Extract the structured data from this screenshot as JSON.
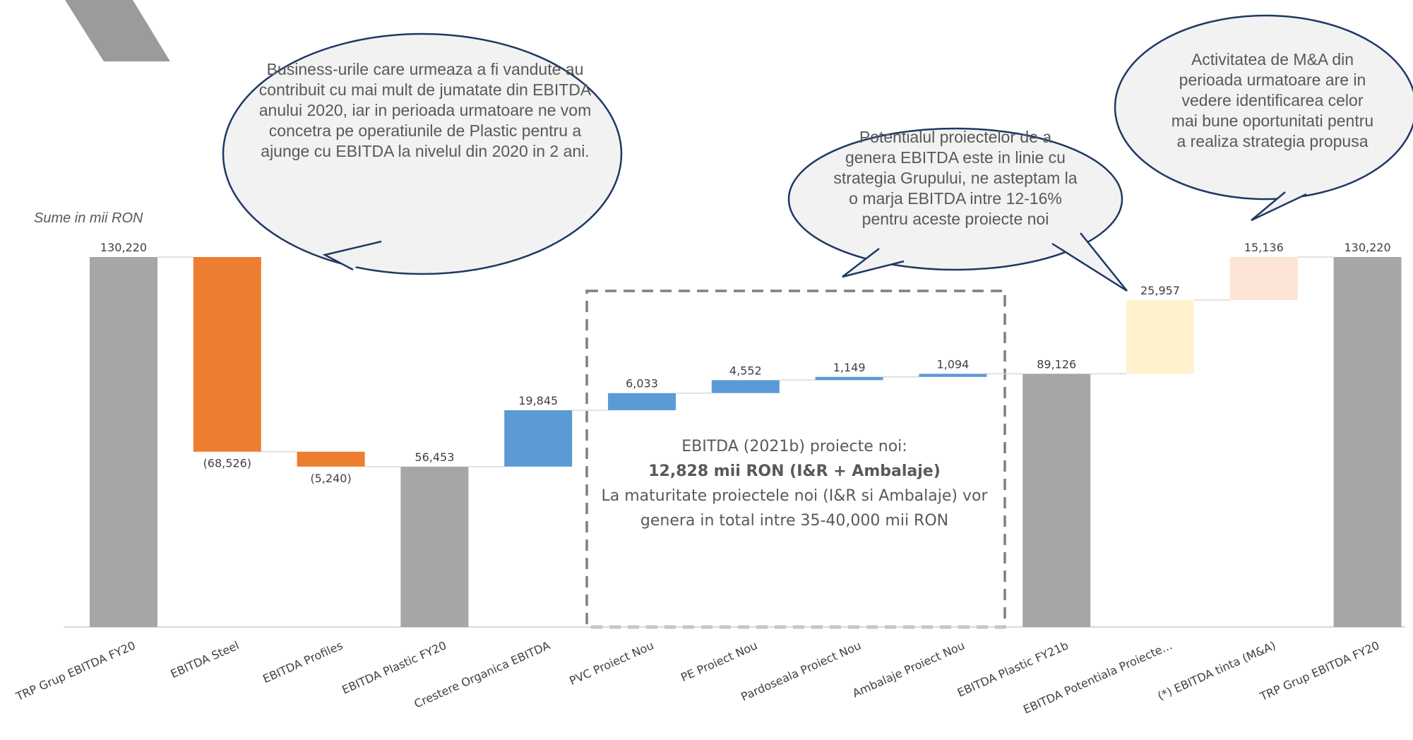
{
  "units_label": "Sume in mii RON",
  "chart_data": {
    "type": "waterfall",
    "ylim": [
      0,
      130220
    ],
    "categories": [
      "TRP Grup EBITDA FY20",
      "EBITDA Steel",
      "EBITDA Profiles",
      "EBITDA Plastic FY20",
      "Crestere Organica EBITDA",
      "PVC Proiect Nou",
      "PE Proiect Nou",
      "Pardoseala Proiect Nou",
      "Ambalaje Proiect Nou",
      "EBITDA Plastic FY21b",
      "EBITDA Potentiala Proiecte...",
      "(*) EBITDA tinta (M&A)",
      "TRP Grup EBITDA FY20"
    ],
    "bars": [
      {
        "kind": "total",
        "start": 0,
        "end": 130220,
        "label": "130,220",
        "color": "#a6a6a6"
      },
      {
        "kind": "delta",
        "start": 130220,
        "end": 61694,
        "label": "(68,526)",
        "color": "#ed7d31"
      },
      {
        "kind": "delta",
        "start": 61694,
        "end": 56453,
        "label": "(5,240)",
        "color": "#ed7d31"
      },
      {
        "kind": "total",
        "start": 0,
        "end": 56453,
        "label": "56,453",
        "color": "#a6a6a6"
      },
      {
        "kind": "delta",
        "start": 56453,
        "end": 76298,
        "label": "19,845",
        "color": "#5b9bd5"
      },
      {
        "kind": "delta",
        "start": 76298,
        "end": 82331,
        "label": "6,033",
        "color": "#5b9bd5"
      },
      {
        "kind": "delta",
        "start": 82331,
        "end": 86883,
        "label": "4,552",
        "color": "#5b9bd5"
      },
      {
        "kind": "delta",
        "start": 86883,
        "end": 88032,
        "label": "1,149",
        "color": "#5b9bd5"
      },
      {
        "kind": "delta",
        "start": 88032,
        "end": 89126,
        "label": "1,094",
        "color": "#5b9bd5"
      },
      {
        "kind": "total",
        "start": 0,
        "end": 89126,
        "label": "89,126",
        "color": "#a6a6a6"
      },
      {
        "kind": "delta",
        "start": 89126,
        "end": 115083,
        "label": "25,957",
        "color": "#fff2cc"
      },
      {
        "kind": "delta",
        "start": 115083,
        "end": 130220,
        "label": "15,136",
        "color": "#fce4d6"
      },
      {
        "kind": "total",
        "start": 0,
        "end": 130220,
        "label": "130,220",
        "color": "#a6a6a6"
      }
    ]
  },
  "annotations": {
    "bubble_left": "Business-urile care urmeaza a fi vandute au contribuit cu mai mult de jumatate din EBITDA anului 2020, iar in perioada urmatoare ne vom concetra pe operatiunile de Plastic pentru a ajunge cu EBITDA la nivelul din 2020 in 2 ani.",
    "bubble_middle": "Potentialul proiectelor de a genera EBITDA este in linie cu strategia Grupului, ne asteptam la o marja EBITDA intre 12-16% pentru aceste proiecte noi",
    "bubble_right": "Activitatea de M&A din perioada urmatoare are in vedere identificarea celor mai bune oportunitati pentru a realiza strategia propusa",
    "box_line1": "EBITDA (2021b) proiecte noi:",
    "box_line2": "12,828 mii RON (I&R + Ambalaje)",
    "box_line3": "La maturitate proiectele noi (I&R si Ambalaje) vor genera in total intre 35-40,000 mii RON"
  }
}
